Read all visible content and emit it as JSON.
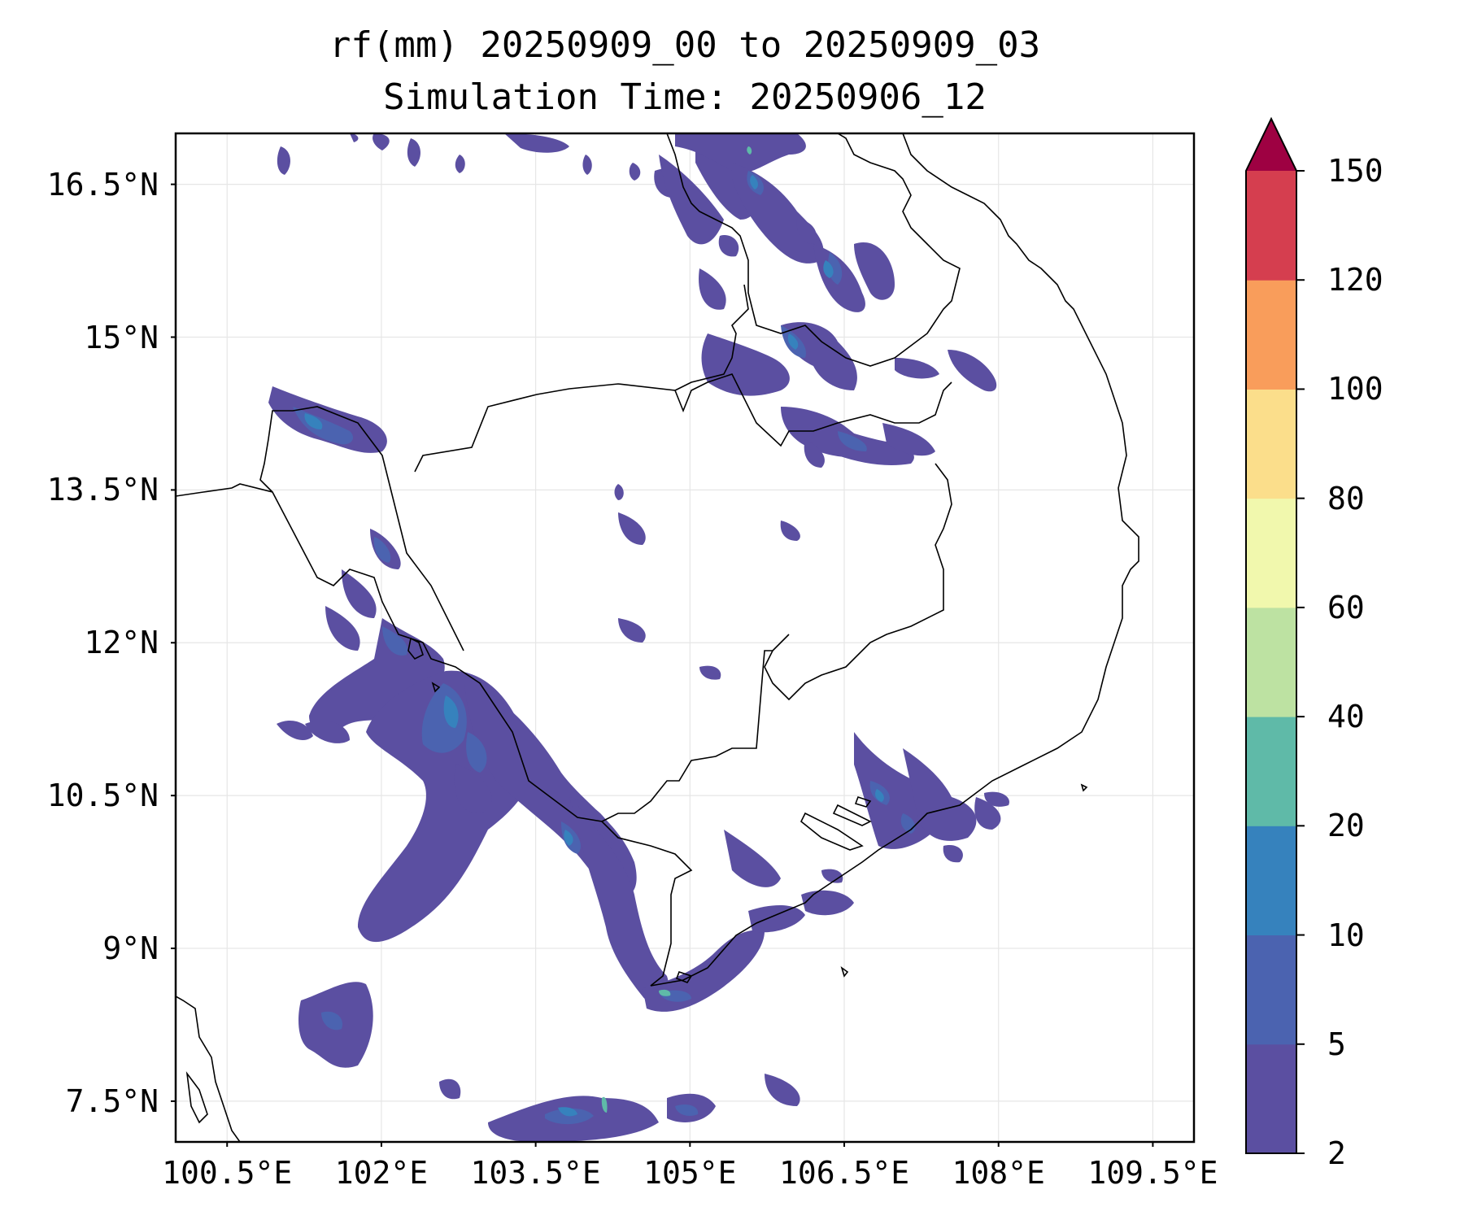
{
  "title": {
    "line1": "rf(mm) 20250909_00 to 20250909_03",
    "line2": "Simulation Time: 20250906_12"
  },
  "axes": {
    "y_ticks": [
      "16.5°N",
      "15°N",
      "13.5°N",
      "12°N",
      "10.5°N",
      "9°N",
      "7.5°N"
    ],
    "x_ticks": [
      "100.5°E",
      "102°E",
      "103.5°E",
      "105°E",
      "106.5°E",
      "108°E",
      "109.5°E"
    ],
    "lon_range": [
      100.0,
      109.9
    ],
    "lat_range": [
      7.1,
      17.0
    ],
    "grid": true
  },
  "colorbar": {
    "labels": [
      "2",
      "5",
      "10",
      "20",
      "40",
      "60",
      "80",
      "100",
      "120",
      "150"
    ],
    "colors": [
      "#5b4fa1",
      "#4b63b0",
      "#3682bd",
      "#5fbaa8",
      "#bde2a2",
      "#f1f8ad",
      "#fbde8b",
      "#f99d5b",
      "#d53e4f",
      "#9e0142"
    ],
    "extend": "max"
  },
  "field_colors": {
    "level_2_5": "#5b4fa1",
    "level_5_10": "#4b63b0",
    "level_10_20": "#3682bd",
    "level_20_40": "#5fbaa8",
    "coastline": "#000000"
  }
}
